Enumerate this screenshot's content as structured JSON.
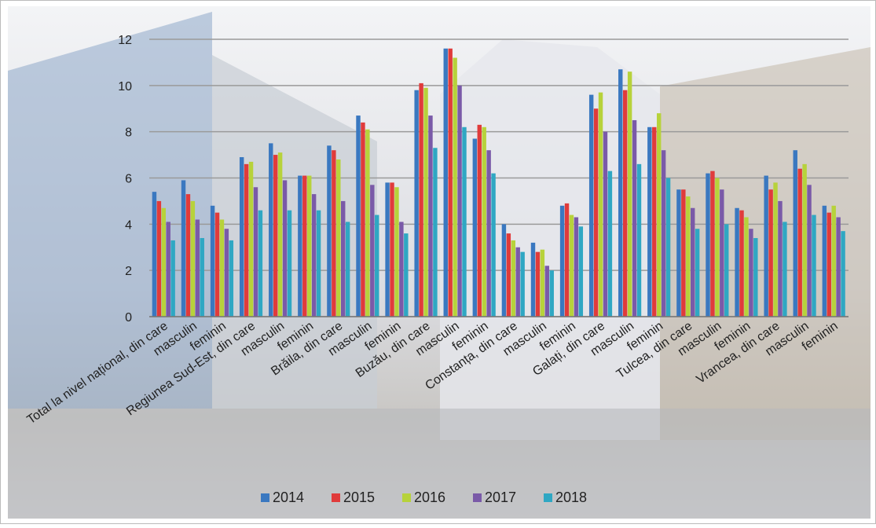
{
  "chart_data": {
    "type": "bar",
    "categories": [
      "Total la nivel național, din care",
      "masculin",
      "feminin",
      "Regiunea Sud-Est, din care",
      "masculin",
      "feminin",
      "Brăila, din care",
      "masculin",
      "feminin",
      "Buzău, din care",
      "masculin",
      "feminin",
      "Constanța, din care",
      "masculin",
      "feminin",
      "Galați, din care",
      "masculin",
      "feminin",
      "Tulcea, din care",
      "masculin",
      "feminin",
      "Vrancea, din care",
      "masculin",
      "feminin"
    ],
    "series": [
      {
        "name": "2014",
        "color": "#3a78c0",
        "values": [
          5.4,
          5.9,
          4.8,
          6.9,
          7.5,
          6.1,
          7.4,
          8.7,
          5.8,
          9.8,
          11.6,
          7.7,
          4.0,
          3.2,
          4.8,
          9.6,
          10.7,
          8.2,
          5.5,
          6.2,
          4.7,
          6.1,
          7.2,
          4.8
        ]
      },
      {
        "name": "2015",
        "color": "#e03b3b",
        "values": [
          5.0,
          5.3,
          4.5,
          6.6,
          7.0,
          6.1,
          7.2,
          8.4,
          5.8,
          10.1,
          11.6,
          8.3,
          3.6,
          2.8,
          4.9,
          9.0,
          9.8,
          8.2,
          5.5,
          6.3,
          4.6,
          5.5,
          6.4,
          4.5
        ]
      },
      {
        "name": "2016",
        "color": "#b7d23b",
        "values": [
          4.7,
          5.0,
          4.2,
          6.7,
          7.1,
          6.1,
          6.8,
          8.1,
          5.6,
          9.9,
          11.2,
          8.2,
          3.3,
          2.9,
          4.4,
          9.7,
          10.6,
          8.8,
          5.2,
          6.0,
          4.3,
          5.8,
          6.6,
          4.8
        ]
      },
      {
        "name": "2017",
        "color": "#7a5aa8",
        "values": [
          4.1,
          4.2,
          3.8,
          5.6,
          5.9,
          5.3,
          5.0,
          5.7,
          4.1,
          8.7,
          10.0,
          7.2,
          3.0,
          2.2,
          4.3,
          8.0,
          8.5,
          7.2,
          4.7,
          5.5,
          3.8,
          5.0,
          5.7,
          4.3
        ]
      },
      {
        "name": "2018",
        "color": "#2fa7c3",
        "values": [
          3.3,
          3.4,
          3.3,
          4.6,
          4.6,
          4.6,
          4.1,
          4.4,
          3.6,
          7.3,
          8.2,
          6.2,
          2.8,
          2.0,
          3.9,
          6.3,
          6.6,
          6.0,
          3.8,
          4.0,
          3.4,
          4.1,
          4.4,
          3.7
        ]
      }
    ],
    "ylim": [
      0,
      12
    ],
    "yticks": [
      0,
      2,
      4,
      6,
      8,
      10,
      12
    ],
    "grid": true
  }
}
